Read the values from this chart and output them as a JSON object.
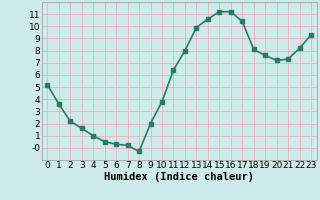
{
  "x": [
    0,
    1,
    2,
    3,
    4,
    5,
    6,
    7,
    8,
    9,
    10,
    11,
    12,
    13,
    14,
    15,
    16,
    17,
    18,
    19,
    20,
    21,
    22,
    23
  ],
  "y": [
    5.2,
    3.6,
    2.2,
    1.6,
    1.0,
    0.5,
    0.3,
    0.2,
    -0.3,
    2.0,
    3.8,
    6.4,
    8.0,
    9.9,
    10.6,
    11.2,
    11.2,
    10.4,
    8.1,
    7.6,
    7.2,
    7.3,
    8.2,
    9.3
  ],
  "line_color": "#2a7a6a",
  "marker_color": "#2a7a6a",
  "bg_color": "#ceeaea",
  "grid_color": "#e8b4b8",
  "xlabel": "Humidex (Indice chaleur)",
  "xlabel_fontsize": 7.5,
  "xlim": [
    -0.5,
    23.5
  ],
  "ylim": [
    -1.0,
    12.0
  ],
  "ytick_values": [
    0,
    1,
    2,
    3,
    4,
    5,
    6,
    7,
    8,
    9,
    10,
    11
  ],
  "ytick_labels": [
    "-0",
    "1",
    "2",
    "3",
    "4",
    "5",
    "6",
    "7",
    "8",
    "9",
    "10",
    "11"
  ],
  "xticks": [
    0,
    1,
    2,
    3,
    4,
    5,
    6,
    7,
    8,
    9,
    10,
    11,
    12,
    13,
    14,
    15,
    16,
    17,
    18,
    19,
    20,
    21,
    22,
    23
  ],
  "tick_fontsize": 6.5,
  "linewidth": 1.2,
  "markersize": 2.5
}
